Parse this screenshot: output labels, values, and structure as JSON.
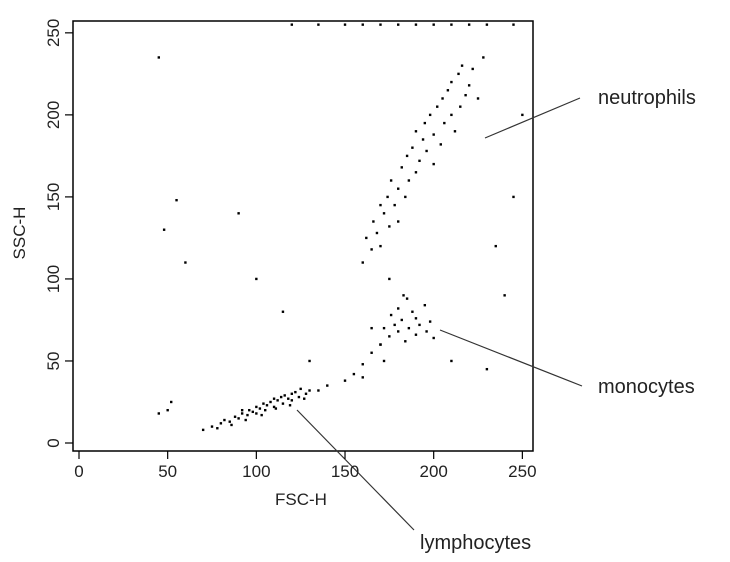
{
  "chart_data": {
    "type": "scatter",
    "xlabel": "FSC-H",
    "ylabel": "SSC-H",
    "xlim": [
      0,
      256
    ],
    "ylim": [
      0,
      256
    ],
    "xticks": [
      0,
      50,
      100,
      150,
      200,
      250
    ],
    "yticks": [
      0,
      50,
      100,
      150,
      200,
      250
    ],
    "color": "#000000",
    "annotations": [
      "neutrophils",
      "monocytes",
      "lymphocytes"
    ],
    "x": [
      75,
      80,
      82,
      85,
      88,
      90,
      92,
      95,
      96,
      98,
      100,
      100,
      102,
      104,
      105,
      106,
      108,
      110,
      110,
      112,
      114,
      115,
      116,
      118,
      120,
      120,
      122,
      124,
      125,
      128,
      130,
      86,
      94,
      103,
      111,
      119,
      127,
      78,
      70,
      92,
      135,
      140,
      150,
      155,
      160,
      165,
      160,
      170,
      165,
      172,
      170,
      172,
      175,
      176,
      178,
      180,
      180,
      182,
      184,
      185,
      186,
      188,
      190,
      190,
      192,
      195,
      196,
      198,
      200,
      183,
      160,
      162,
      165,
      166,
      168,
      170,
      170,
      172,
      174,
      175,
      176,
      178,
      180,
      180,
      182,
      184,
      185,
      186,
      188,
      190,
      190,
      192,
      194,
      195,
      196,
      198,
      200,
      200,
      202,
      204,
      205,
      206,
      208,
      210,
      210,
      212,
      214,
      215,
      216,
      218,
      220,
      222,
      225,
      228,
      175,
      45,
      48,
      50,
      55,
      60,
      100,
      210,
      240,
      230,
      245,
      90,
      115,
      250,
      130,
      235,
      45,
      52,
      120,
      135,
      150,
      160,
      170,
      180,
      190,
      200,
      210,
      220,
      230,
      245
    ],
    "y": [
      10,
      12,
      14,
      13,
      16,
      15,
      18,
      17,
      20,
      19,
      22,
      18,
      21,
      24,
      20,
      23,
      25,
      22,
      27,
      26,
      28,
      24,
      29,
      27,
      30,
      26,
      31,
      28,
      33,
      30,
      32,
      11,
      14,
      17,
      21,
      23,
      27,
      9,
      8,
      20,
      32,
      35,
      38,
      42,
      48,
      55,
      40,
      60,
      70,
      50,
      60,
      70,
      65,
      78,
      72,
      68,
      82,
      75,
      62,
      88,
      70,
      80,
      66,
      76,
      72,
      84,
      68,
      74,
      64,
      90,
      110,
      125,
      118,
      135,
      128,
      145,
      120,
      140,
      150,
      132,
      160,
      145,
      155,
      135,
      168,
      150,
      175,
      160,
      180,
      165,
      190,
      172,
      185,
      195,
      178,
      200,
      170,
      188,
      205,
      182,
      210,
      195,
      215,
      200,
      220,
      190,
      225,
      205,
      230,
      212,
      218,
      228,
      210,
      235,
      100,
      235,
      130,
      20,
      148,
      110,
      100,
      50,
      90,
      45,
      150,
      140,
      80,
      200,
      50,
      120,
      18,
      25,
      255,
      255,
      255,
      255,
      255,
      255,
      255,
      255,
      255,
      255,
      255,
      255
    ]
  }
}
